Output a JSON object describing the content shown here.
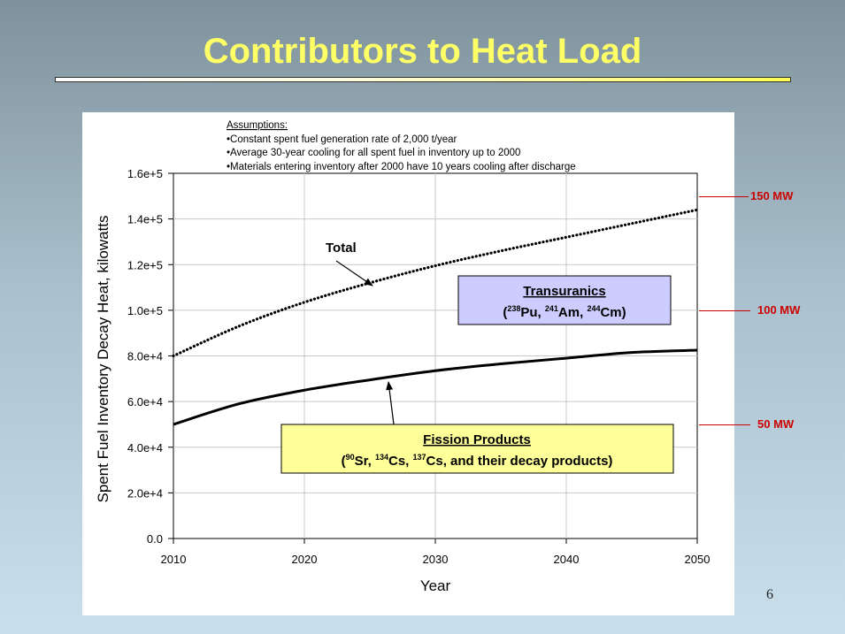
{
  "slide": {
    "title": "Contributors to Heat Load",
    "page_number": "6"
  },
  "mw_markers": [
    {
      "label": "150 MW",
      "value": 150000
    },
    {
      "label": "100 MW",
      "value": 100000
    },
    {
      "label": "50 MW",
      "value": 50000
    }
  ],
  "chart_data": {
    "type": "line",
    "xlabel": "Year",
    "ylabel": "Spent Fuel Inventory Decay Heat, kilowatts",
    "xlim": [
      2010,
      2050
    ],
    "ylim": [
      0,
      160000
    ],
    "x_ticks": [
      "2010",
      "2020",
      "2030",
      "2040",
      "2050"
    ],
    "y_ticks": [
      "0.0",
      "2.0e+4",
      "4.0e+4",
      "6.0e+4",
      "8.0e+4",
      "1.0e+5",
      "1.2e+5",
      "1.4e+5",
      "1.6e+5"
    ],
    "x": [
      2010,
      2015,
      2020,
      2025,
      2030,
      2035,
      2040,
      2045,
      2050
    ],
    "series": [
      {
        "name": "Total",
        "style": "dotted",
        "values": [
          80000,
          93000,
          103500,
          112000,
          119500,
          126000,
          132000,
          138000,
          144000
        ]
      },
      {
        "name": "Fission Products",
        "style": "solid",
        "values": [
          50000,
          59000,
          65000,
          69500,
          73500,
          76500,
          79000,
          81500,
          82500
        ]
      }
    ],
    "assumptions": {
      "heading": "Assumptions:",
      "items": [
        "•Constant spent fuel generation rate of 2,000 t/year",
        "•Average 30-year cooling for all spent fuel in inventory up to 2000",
        "•Materials entering inventory after 2000 have 10 years cooling after discharge"
      ]
    },
    "annotations": {
      "total_label": "Total",
      "transuranics": {
        "title": "Transuranics",
        "open": "(",
        "iso1_mass": "238",
        "iso1_sym": "Pu, ",
        "iso2_mass": "241",
        "iso2_sym": "Am, ",
        "iso3_mass": "244",
        "iso3_sym": "Cm)"
      },
      "fission": {
        "title": "Fission Products",
        "open": "(",
        "iso1_mass": "90",
        "iso1_sym": "Sr, ",
        "iso2_mass": "134",
        "iso2_sym": "Cs, ",
        "iso3_mass": "137",
        "iso3_sym": "Cs, and their decay products)"
      }
    }
  }
}
